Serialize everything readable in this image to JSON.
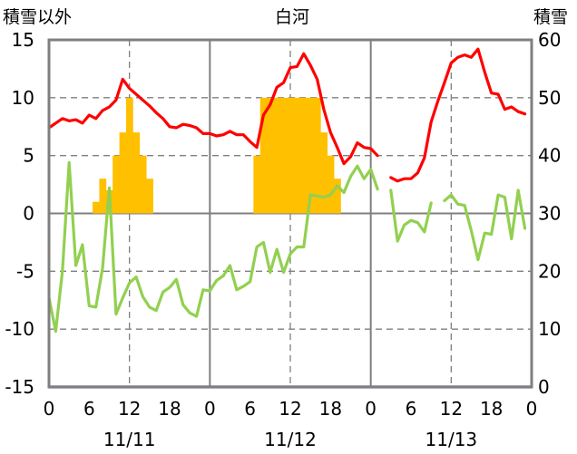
{
  "chart_data": {
    "type": "combo",
    "title": "白河",
    "left_axis_label": "積雪以外",
    "right_axis_label": "積雪",
    "y_left": {
      "min": -15,
      "max": 15,
      "ticks": [
        15,
        10,
        5,
        0,
        -5,
        -10,
        -15
      ]
    },
    "y_right": {
      "min": 0,
      "max": 60,
      "ticks": [
        60,
        50,
        40,
        30,
        20,
        10,
        0
      ]
    },
    "x": {
      "min": 0,
      "max": 72,
      "unit": "hour",
      "tick_hours": [
        0,
        6,
        12,
        18,
        24,
        30,
        36,
        42,
        48,
        54,
        60,
        66,
        72
      ],
      "tick_labels": [
        "0",
        "6",
        "12",
        "18",
        "0",
        "6",
        "12",
        "18",
        "0",
        "6",
        "12",
        "18",
        "0"
      ]
    },
    "day_labels": [
      {
        "label": "11/11",
        "hour": 12
      },
      {
        "label": "11/12",
        "hour": 36
      },
      {
        "label": "11/13",
        "hour": 60
      }
    ],
    "series": [
      {
        "kind": "line",
        "axis": "left",
        "color": "#ff0000",
        "points": [
          [
            0,
            7.4
          ],
          [
            1,
            7.8
          ],
          [
            2,
            8.2
          ],
          [
            3,
            8.0
          ],
          [
            4,
            8.1
          ],
          [
            5,
            7.8
          ],
          [
            6,
            8.5
          ],
          [
            7,
            8.2
          ],
          [
            8,
            8.9
          ],
          [
            9,
            9.2
          ],
          [
            10,
            9.8
          ],
          [
            11,
            11.6
          ],
          [
            12,
            10.8
          ],
          [
            13,
            10.3
          ],
          [
            14,
            9.8
          ],
          [
            15,
            9.3
          ],
          [
            16,
            8.7
          ],
          [
            17,
            8.2
          ],
          [
            18,
            7.5
          ],
          [
            19,
            7.4
          ],
          [
            20,
            7.7
          ],
          [
            21,
            7.6
          ],
          [
            22,
            7.4
          ],
          [
            23,
            6.9
          ],
          [
            24,
            6.9
          ],
          [
            25,
            6.7
          ],
          [
            26,
            6.8
          ],
          [
            27,
            7.1
          ],
          [
            28,
            6.8
          ],
          [
            29,
            6.8
          ],
          [
            30,
            6.2
          ],
          [
            31,
            5.7
          ],
          [
            32,
            8.5
          ],
          [
            33,
            9.4
          ],
          [
            34,
            10.9
          ],
          [
            35,
            11.3
          ],
          [
            36,
            12.6
          ],
          [
            37,
            12.7
          ],
          [
            38,
            13.8
          ],
          [
            39,
            12.8
          ],
          [
            40,
            11.6
          ],
          [
            41,
            9.0
          ],
          [
            42,
            7.0
          ],
          [
            43,
            5.7
          ],
          [
            44,
            4.3
          ],
          [
            45,
            4.9
          ],
          [
            46,
            6.1
          ],
          [
            47,
            5.7
          ],
          [
            48,
            5.6
          ],
          [
            49,
            5.0
          ],
          null,
          [
            51,
            3.1
          ],
          [
            52,
            2.8
          ],
          [
            53,
            3.0
          ],
          [
            54,
            3.0
          ],
          [
            55,
            3.5
          ],
          [
            56,
            4.8
          ],
          [
            57,
            7.9
          ],
          [
            58,
            9.7
          ],
          [
            59,
            11.3
          ],
          [
            60,
            13.0
          ],
          [
            61,
            13.5
          ],
          [
            62,
            13.7
          ],
          [
            63,
            13.5
          ],
          [
            64,
            14.2
          ],
          [
            65,
            12.2
          ],
          [
            66,
            10.4
          ],
          [
            67,
            10.3
          ],
          [
            68,
            9.0
          ],
          [
            69,
            9.2
          ],
          [
            70,
            8.8
          ],
          [
            71,
            8.6
          ]
        ]
      },
      {
        "kind": "line",
        "axis": "left",
        "color": "#92d050",
        "points": [
          [
            0,
            -7.3
          ],
          [
            1,
            -10.2
          ],
          [
            2,
            -5.0
          ],
          [
            3,
            4.4
          ],
          [
            4,
            -4.5
          ],
          [
            5,
            -2.7
          ],
          [
            6,
            -8.0
          ],
          [
            7,
            -8.1
          ],
          [
            8,
            -4.7
          ],
          [
            9,
            2.2
          ],
          [
            10,
            -8.7
          ],
          [
            11,
            -7.3
          ],
          [
            12,
            -6.0
          ],
          [
            13,
            -5.5
          ],
          [
            14,
            -7.2
          ],
          [
            15,
            -8.1
          ],
          [
            16,
            -8.4
          ],
          [
            17,
            -6.8
          ],
          [
            18,
            -6.4
          ],
          [
            19,
            -5.7
          ],
          [
            20,
            -7.9
          ],
          [
            21,
            -8.6
          ],
          [
            22,
            -8.9
          ],
          [
            23,
            -6.6
          ],
          [
            24,
            -6.7
          ],
          [
            25,
            -5.8
          ],
          [
            26,
            -5.4
          ],
          [
            27,
            -4.5
          ],
          [
            28,
            -6.6
          ],
          [
            29,
            -6.3
          ],
          [
            30,
            -5.9
          ],
          [
            31,
            -2.9
          ],
          [
            32,
            -2.5
          ],
          [
            33,
            -5.1
          ],
          [
            34,
            -3.1
          ],
          [
            35,
            -5.1
          ],
          [
            36,
            -3.5
          ],
          [
            37,
            -2.9
          ],
          [
            38,
            -2.9
          ],
          [
            39,
            1.6
          ],
          [
            40,
            1.5
          ],
          [
            41,
            1.4
          ],
          [
            42,
            1.6
          ],
          [
            43,
            2.4
          ],
          [
            44,
            1.8
          ],
          [
            45,
            3.2
          ],
          [
            46,
            4.1
          ],
          [
            47,
            3.0
          ],
          [
            48,
            3.8
          ],
          [
            49,
            2.1
          ],
          null,
          [
            51,
            2.0
          ],
          [
            52,
            -2.4
          ],
          [
            53,
            -1.0
          ],
          [
            54,
            -0.6
          ],
          [
            55,
            -0.8
          ],
          [
            56,
            -1.6
          ],
          [
            57,
            0.9
          ],
          null,
          [
            59,
            1.1
          ],
          [
            60,
            1.6
          ],
          [
            61,
            0.8
          ],
          [
            62,
            0.7
          ],
          [
            63,
            -1.5
          ],
          [
            64,
            -4.0
          ],
          [
            65,
            -1.7
          ],
          [
            66,
            -1.8
          ],
          [
            67,
            1.6
          ],
          [
            68,
            1.4
          ],
          [
            69,
            -2.2
          ],
          [
            70,
            2.0
          ],
          [
            71,
            -1.3
          ]
        ]
      },
      {
        "kind": "line",
        "axis": "left",
        "color": "#7030a0",
        "points": [
          [
            0,
            -15
          ],
          [
            72,
            -15
          ]
        ]
      },
      {
        "kind": "bar",
        "axis": "left",
        "color": "#ffc000",
        "values": [
          [
            7,
            1
          ],
          [
            8,
            3
          ],
          [
            9,
            2
          ],
          [
            10,
            5
          ],
          [
            11,
            7
          ],
          [
            12,
            10
          ],
          [
            13,
            7
          ],
          [
            14,
            5
          ],
          [
            15,
            3
          ],
          [
            31,
            5
          ],
          [
            32,
            10
          ],
          [
            33,
            10
          ],
          [
            34,
            10
          ],
          [
            35,
            10
          ],
          [
            36,
            10
          ],
          [
            37,
            10
          ],
          [
            38,
            10
          ],
          [
            39,
            10
          ],
          [
            40,
            10
          ],
          [
            41,
            7
          ],
          [
            42,
            5
          ],
          [
            43,
            3
          ]
        ]
      }
    ]
  }
}
